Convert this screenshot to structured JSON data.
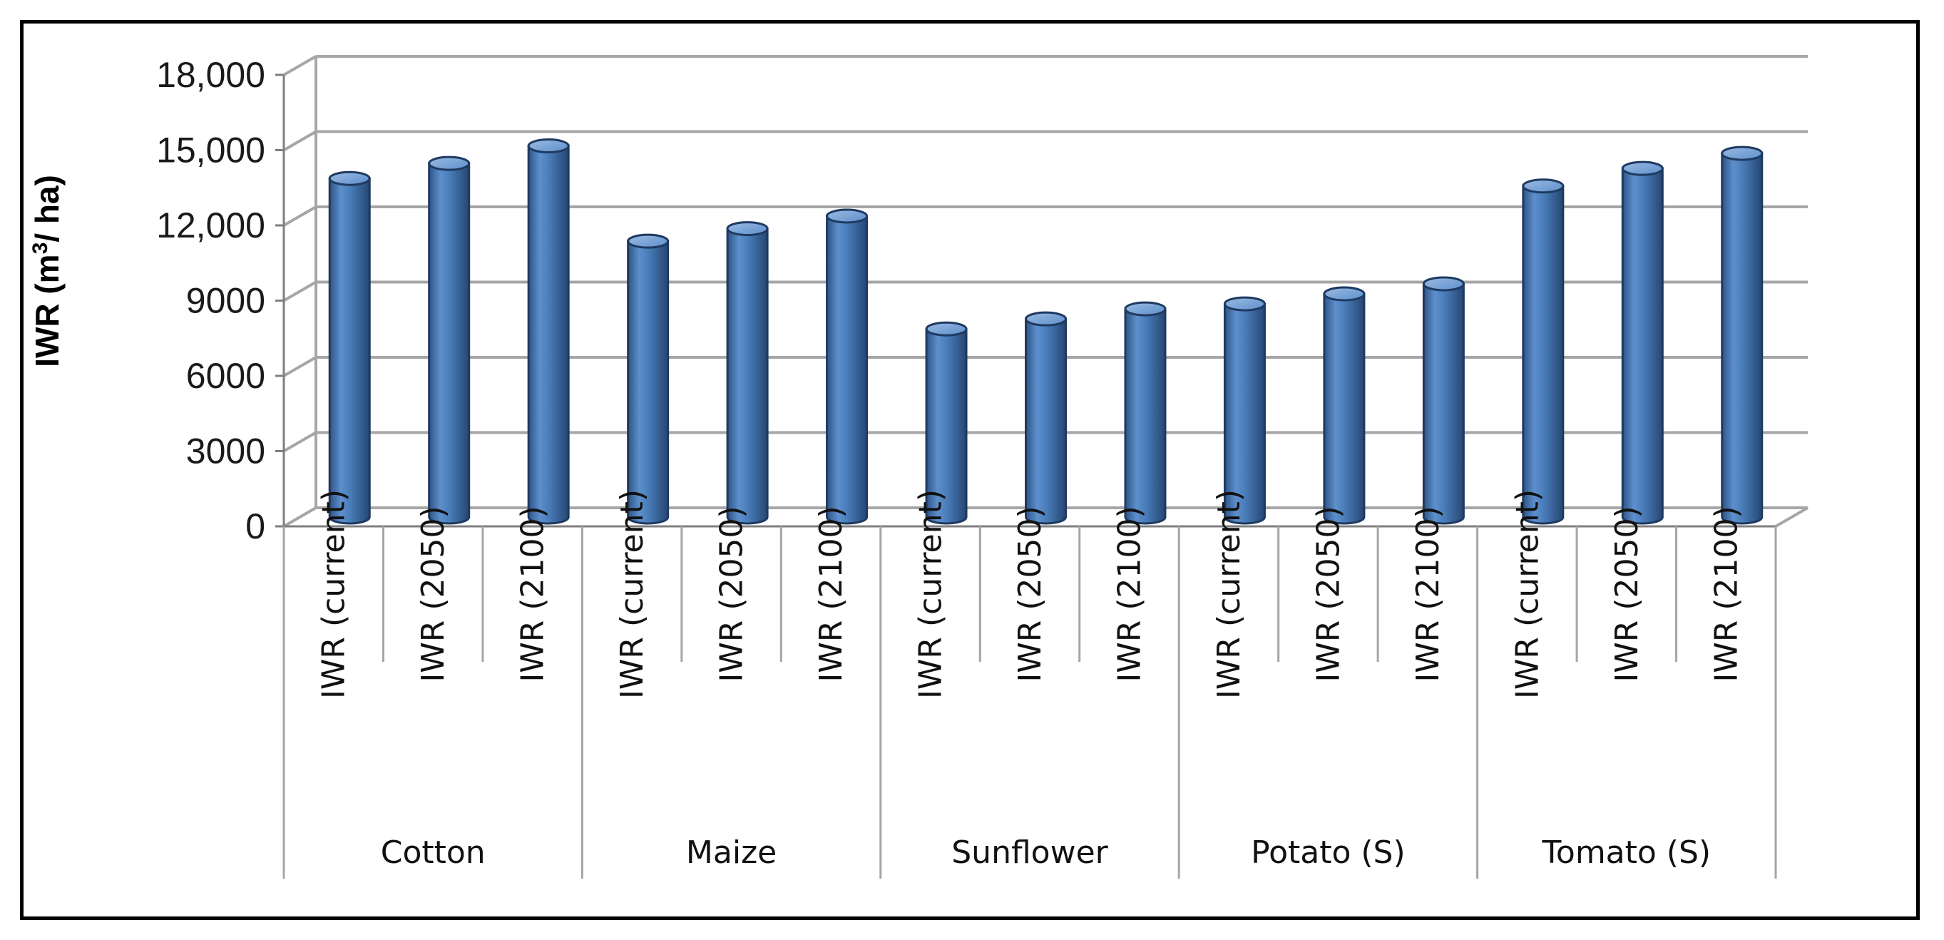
{
  "chart_data": {
    "type": "bar",
    "ylabel_prefix": "IWR (m",
    "ylabel_sup": "3",
    "ylabel_suffix": "/ ha)",
    "xlabel": "",
    "ylim": [
      0,
      18000
    ],
    "yticks": [
      {
        "value": 0,
        "label": "0"
      },
      {
        "value": 3000,
        "label": "3000"
      },
      {
        "value": 6000,
        "label": "6000"
      },
      {
        "value": 9000,
        "label": "9000"
      },
      {
        "value": 12000,
        "label": "12,000"
      },
      {
        "value": 15000,
        "label": "15,000"
      },
      {
        "value": 18000,
        "label": "18,000"
      }
    ],
    "grid": true,
    "legend": "none",
    "bar_color": "#4a7ebb",
    "groups": [
      {
        "name": "Cotton",
        "categories": [
          "IWR (current)",
          "IWR (2050)",
          "IWR (2100)"
        ],
        "values": [
          13500,
          14100,
          14800
        ]
      },
      {
        "name": "Maize",
        "categories": [
          "IWR (current)",
          "IWR (2050)",
          "IWR (2100)"
        ],
        "values": [
          11000,
          11500,
          12000
        ]
      },
      {
        "name": "Sunflower",
        "categories": [
          "IWR (current)",
          "IWR (2050)",
          "IWR (2100)"
        ],
        "values": [
          7500,
          7900,
          8300
        ]
      },
      {
        "name": "Potato (S)",
        "categories": [
          "IWR (current)",
          "IWR (2050)",
          "IWR (2100)"
        ],
        "values": [
          8500,
          8900,
          9300
        ]
      },
      {
        "name": "Tomato (S)",
        "categories": [
          "IWR (current)",
          "IWR (2050)",
          "IWR (2100)"
        ],
        "values": [
          13200,
          13900,
          14500
        ]
      }
    ]
  }
}
